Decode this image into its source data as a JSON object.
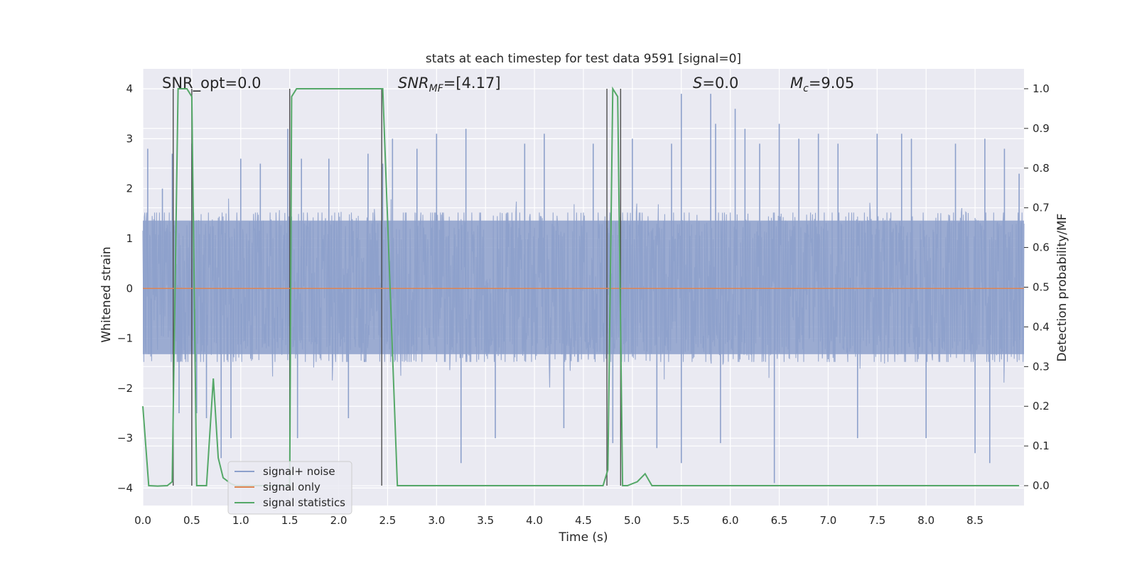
{
  "chart_data": {
    "type": "line",
    "title": "stats at each timestep for test data 9591 [signal=0]",
    "xlabel": "Time (s)",
    "ylabel_left": "Whitened strain",
    "ylabel_right": "Detection probability/MF",
    "xlim": [
      0.0,
      9.0
    ],
    "ylim_left": [
      -4.35,
      4.4
    ],
    "ylim_right": [
      -0.05,
      1.05
    ],
    "x_ticks": [
      "0.0",
      "0.5",
      "1.0",
      "1.5",
      "2.0",
      "2.5",
      "3.0",
      "3.5",
      "4.0",
      "4.5",
      "5.0",
      "5.5",
      "6.0",
      "6.5",
      "7.0",
      "7.5",
      "8.0",
      "8.5"
    ],
    "y_ticks_left": [
      "−4",
      "−3",
      "−2",
      "−1",
      "0",
      "1",
      "2",
      "3",
      "4"
    ],
    "y_ticks_right": [
      "0.0",
      "0.1",
      "0.2",
      "0.3",
      "0.4",
      "0.5",
      "0.6",
      "0.7",
      "0.8",
      "0.9",
      "1.0"
    ],
    "grid": true,
    "legend_position": "lower-left",
    "annotations": {
      "snr_opt": "SNR_opt=0.0",
      "snr_mf": "=[4.17]",
      "s_value": "=0.0",
      "mc_value": "=9.05"
    },
    "series": [
      {
        "name": "signal+ noise",
        "color": "#8da0cb",
        "kind": "noise",
        "band_typical": [
          -1.55,
          1.6
        ],
        "spikes": [
          [
            0.05,
            2.8
          ],
          [
            0.2,
            2.0
          ],
          [
            0.3,
            2.7
          ],
          [
            0.37,
            -2.5
          ],
          [
            0.5,
            2.9
          ],
          [
            0.55,
            -2.5
          ],
          [
            0.65,
            -2.6
          ],
          [
            0.8,
            -3.4
          ],
          [
            0.9,
            -3.0
          ],
          [
            1.0,
            2.6
          ],
          [
            1.2,
            2.5
          ],
          [
            1.48,
            3.2
          ],
          [
            1.58,
            -3.0
          ],
          [
            1.62,
            2.6
          ],
          [
            1.9,
            2.6
          ],
          [
            2.1,
            -2.6
          ],
          [
            2.3,
            2.7
          ],
          [
            2.45,
            2.5
          ],
          [
            2.55,
            3.0
          ],
          [
            2.8,
            2.8
          ],
          [
            3.0,
            3.1
          ],
          [
            3.25,
            -3.5
          ],
          [
            3.3,
            3.2
          ],
          [
            3.6,
            -3.0
          ],
          [
            3.9,
            2.9
          ],
          [
            4.1,
            3.1
          ],
          [
            4.3,
            -2.8
          ],
          [
            4.6,
            2.9
          ],
          [
            4.8,
            -3.1
          ],
          [
            5.0,
            3.0
          ],
          [
            5.25,
            -3.2
          ],
          [
            5.4,
            2.9
          ],
          [
            5.5,
            3.9
          ],
          [
            5.5,
            -3.5
          ],
          [
            5.8,
            3.9
          ],
          [
            5.85,
            3.3
          ],
          [
            5.9,
            -3.1
          ],
          [
            6.05,
            3.6
          ],
          [
            6.15,
            3.2
          ],
          [
            6.3,
            2.9
          ],
          [
            6.45,
            -3.9
          ],
          [
            6.5,
            3.3
          ],
          [
            6.7,
            3.0
          ],
          [
            6.9,
            3.1
          ],
          [
            7.1,
            2.9
          ],
          [
            7.3,
            -3.0
          ],
          [
            7.5,
            3.1
          ],
          [
            7.75,
            3.1
          ],
          [
            7.85,
            3.0
          ],
          [
            8.0,
            -3.0
          ],
          [
            8.3,
            2.9
          ],
          [
            8.5,
            -3.3
          ],
          [
            8.6,
            3.0
          ],
          [
            8.65,
            -3.5
          ],
          [
            8.8,
            2.8
          ],
          [
            8.95,
            2.3
          ]
        ]
      },
      {
        "name": "signal only",
        "color": "#dd8452",
        "kind": "flat",
        "y": 0.0
      },
      {
        "name": "signal statistics",
        "color": "#55a868",
        "kind": "line",
        "axis": "right",
        "x": [
          0.0,
          0.06,
          0.15,
          0.25,
          0.3,
          0.36,
          0.45,
          0.5,
          0.55,
          0.65,
          0.72,
          0.77,
          0.82,
          0.9,
          0.95,
          1.0,
          1.5,
          1.52,
          1.57,
          1.65,
          2.0,
          2.45,
          2.6,
          3.0,
          4.5,
          4.7,
          4.75,
          4.8,
          4.85,
          4.9,
          4.95,
          5.05,
          5.13,
          5.2,
          6.0,
          8.95
        ],
        "y": [
          0.2,
          0.0,
          -0.001,
          0.0,
          0.01,
          1.0,
          1.0,
          0.98,
          0.0,
          0.0,
          0.27,
          0.07,
          0.02,
          0.005,
          0.0,
          0.0,
          0.0,
          0.98,
          1.0,
          1.0,
          1.0,
          1.0,
          0.0,
          0.0,
          0.0,
          0.0,
          0.04,
          1.0,
          0.98,
          0.0,
          0.0,
          0.01,
          0.03,
          0.0,
          0.0,
          0.0
        ]
      }
    ],
    "vertical_markers_x": [
      0.31,
      0.5,
      1.5,
      2.44,
      4.74,
      4.88
    ]
  }
}
